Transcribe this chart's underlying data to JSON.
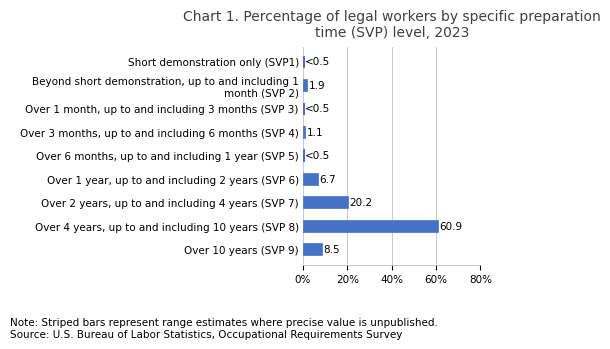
{
  "title": "Chart 1. Percentage of legal workers by specific preparation\ntime (SVP) level, 2023",
  "categories": [
    "Short demonstration only (SVP1)",
    "Beyond short demonstration, up to and including 1\nmonth (SVP 2)",
    "Over 1 month, up to and including 3 months (SVP 3)",
    "Over 3 months, up to and including 6 months (SVP 4)",
    "Over 6 months, up to and including 1 year (SVP 5)",
    "Over 1 year, up to and including 2 years (SVP 6)",
    "Over 2 years, up to and including 4 years (SVP 7)",
    "Over 4 years, up to and including 10 years (SVP 8)",
    "Over 10 years (SVP 9)"
  ],
  "values": [
    0.3,
    1.9,
    0.3,
    1.1,
    0.3,
    6.7,
    20.2,
    60.9,
    8.5
  ],
  "labels": [
    "<0.5",
    "1.9",
    "<0.5",
    "1.1",
    "<0.5",
    "6.7",
    "20.2",
    "60.9",
    "8.5"
  ],
  "striped": [
    true,
    false,
    true,
    false,
    true,
    false,
    false,
    false,
    false
  ],
  "bar_color": "#4472C4",
  "xlim": [
    0,
    80
  ],
  "xticks": [
    0,
    20,
    40,
    60,
    80
  ],
  "xticklabels": [
    "0%",
    "20%",
    "40%",
    "60%",
    "80%"
  ],
  "note": "Note: Striped bars represent range estimates where precise value is unpublished.\nSource: U.S. Bureau of Labor Statistics, Occupational Requirements Survey",
  "title_fontsize": 10,
  "label_fontsize": 7.5,
  "tick_fontsize": 7.5,
  "note_fontsize": 7.5,
  "title_color": "#404040",
  "bar_height": 0.5
}
